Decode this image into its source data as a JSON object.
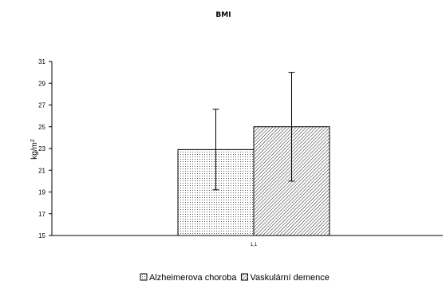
{
  "chart_data": {
    "type": "bar",
    "title": "BMI",
    "ylabel": "kg/m",
    "ylabel_superscript": "2",
    "categories": [
      "1,1"
    ],
    "ylim": [
      15,
      31
    ],
    "yticks": [
      15,
      17,
      19,
      21,
      23,
      25,
      27,
      29,
      31
    ],
    "series": [
      {
        "name": "Alzheimerova choroba",
        "values": [
          22.9
        ],
        "error": [
          3.7
        ],
        "pattern": "dots"
      },
      {
        "name": "Vaskulární demence",
        "values": [
          25.0
        ],
        "error": [
          5.0
        ],
        "pattern": "diagonal-hatch"
      }
    ],
    "legend_position": "bottom",
    "grid": false
  }
}
